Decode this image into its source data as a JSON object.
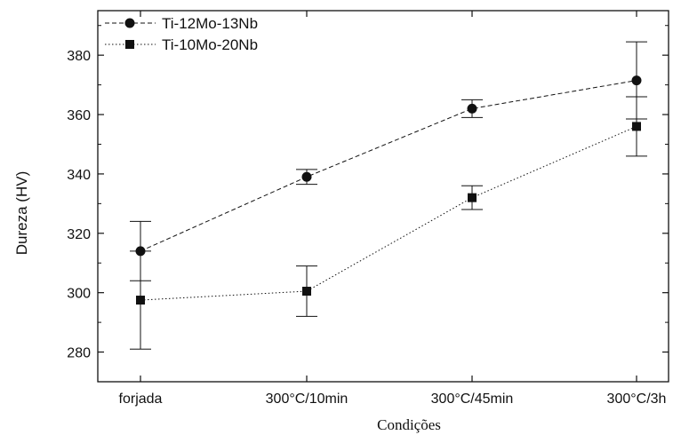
{
  "chart_data": {
    "type": "line",
    "title": "",
    "xlabel": "Condições",
    "ylabel": "Dureza (HV)",
    "categories": [
      "forjada",
      "300°C/10min",
      "300°C/45min",
      "300°C/3h"
    ],
    "ylim": [
      270,
      395
    ],
    "yticks": [
      280,
      300,
      320,
      340,
      360,
      380
    ],
    "grid": false,
    "legend_position": "top-left",
    "series": [
      {
        "name": "Ti-12Mo-13Nb",
        "marker": "circle",
        "line_style": "dashed",
        "values": [
          314,
          339,
          362,
          371.5
        ],
        "error": [
          10,
          2.5,
          3,
          13
        ]
      },
      {
        "name": "Ti-10Mo-20Nb",
        "marker": "square",
        "line_style": "dotted",
        "values": [
          297.5,
          300.5,
          332,
          356
        ],
        "error": [
          16.5,
          8.5,
          4,
          10
        ]
      }
    ],
    "colors": {
      "ink": "#111111"
    }
  }
}
